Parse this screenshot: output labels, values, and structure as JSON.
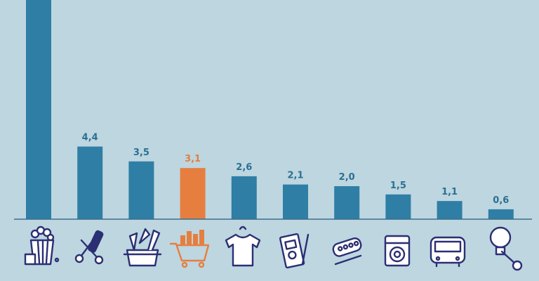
{
  "colors": {
    "background": "#bdd6e0",
    "bar": "#2f7ea5",
    "highlight": "#e67e3f",
    "label": "#2b6f93",
    "axis": "#3f6f8c",
    "icon_stroke": "#2b2f73"
  },
  "chart_data": {
    "type": "bar",
    "categories": [
      "",
      "",
      "",
      "",
      "",
      "",
      "",
      "",
      "",
      ""
    ],
    "values": [
      null,
      4.4,
      3.5,
      3.1,
      2.6,
      2.1,
      2.0,
      1.5,
      1.1,
      0.6
    ],
    "value_labels": [
      "",
      "4,4",
      "3,5",
      "3,1",
      "2,6",
      "2,1",
      "2,0",
      "1,5",
      "1,1",
      "0,6"
    ],
    "highlight_index": 3,
    "first_bar_exceeds_axis": true,
    "ylim": [
      0,
      5.5
    ],
    "grid": false,
    "legend": "none",
    "icons": [
      "groceries-basket-icon",
      "hair-tools-icon",
      "hardware-supplies-icon",
      "shopping-cart-icon",
      "t-shirt-icon",
      "notebook-pen-icon",
      "medicine-thermometer-icon",
      "washing-machine-icon",
      "bus-icon",
      "lightbulb-wrench-icon"
    ]
  }
}
